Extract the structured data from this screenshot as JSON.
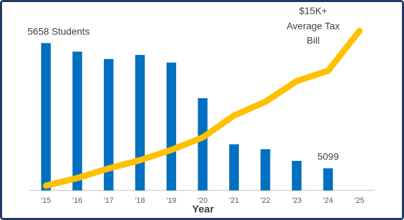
{
  "chart_data": {
    "type": "bar-line",
    "x_label": "Year",
    "categories": [
      "'15",
      "'16",
      "'17",
      "'18",
      "'19",
      "'20",
      "'21",
      "'22",
      "'23",
      "'24",
      "'25"
    ],
    "ylim": [
      5000,
      5700
    ],
    "y2lim": [
      6000,
      15000
    ],
    "series": [
      {
        "type": "bar",
        "color": "#0070c0",
        "values": [
          5658,
          5620,
          5587,
          5605,
          5571,
          5412,
          5206,
          5184,
          5132,
          5099,
          null
        ],
        "value_labels": [
          "5658 Students",
          null,
          null,
          null,
          null,
          null,
          null,
          null,
          null,
          "5099",
          null
        ]
      },
      {
        "type": "line",
        "axis": "y2",
        "color": "#ffc000",
        "values": [
          6000,
          6440,
          7000,
          7480,
          8080,
          8800,
          10080,
          10880,
          12080,
          12680,
          15000
        ],
        "value_labels": [
          null,
          null,
          null,
          null,
          null,
          null,
          null,
          null,
          null,
          null,
          "$15K+"
        ]
      }
    ],
    "annotation": [
      "Average Tax",
      "Bill"
    ]
  }
}
